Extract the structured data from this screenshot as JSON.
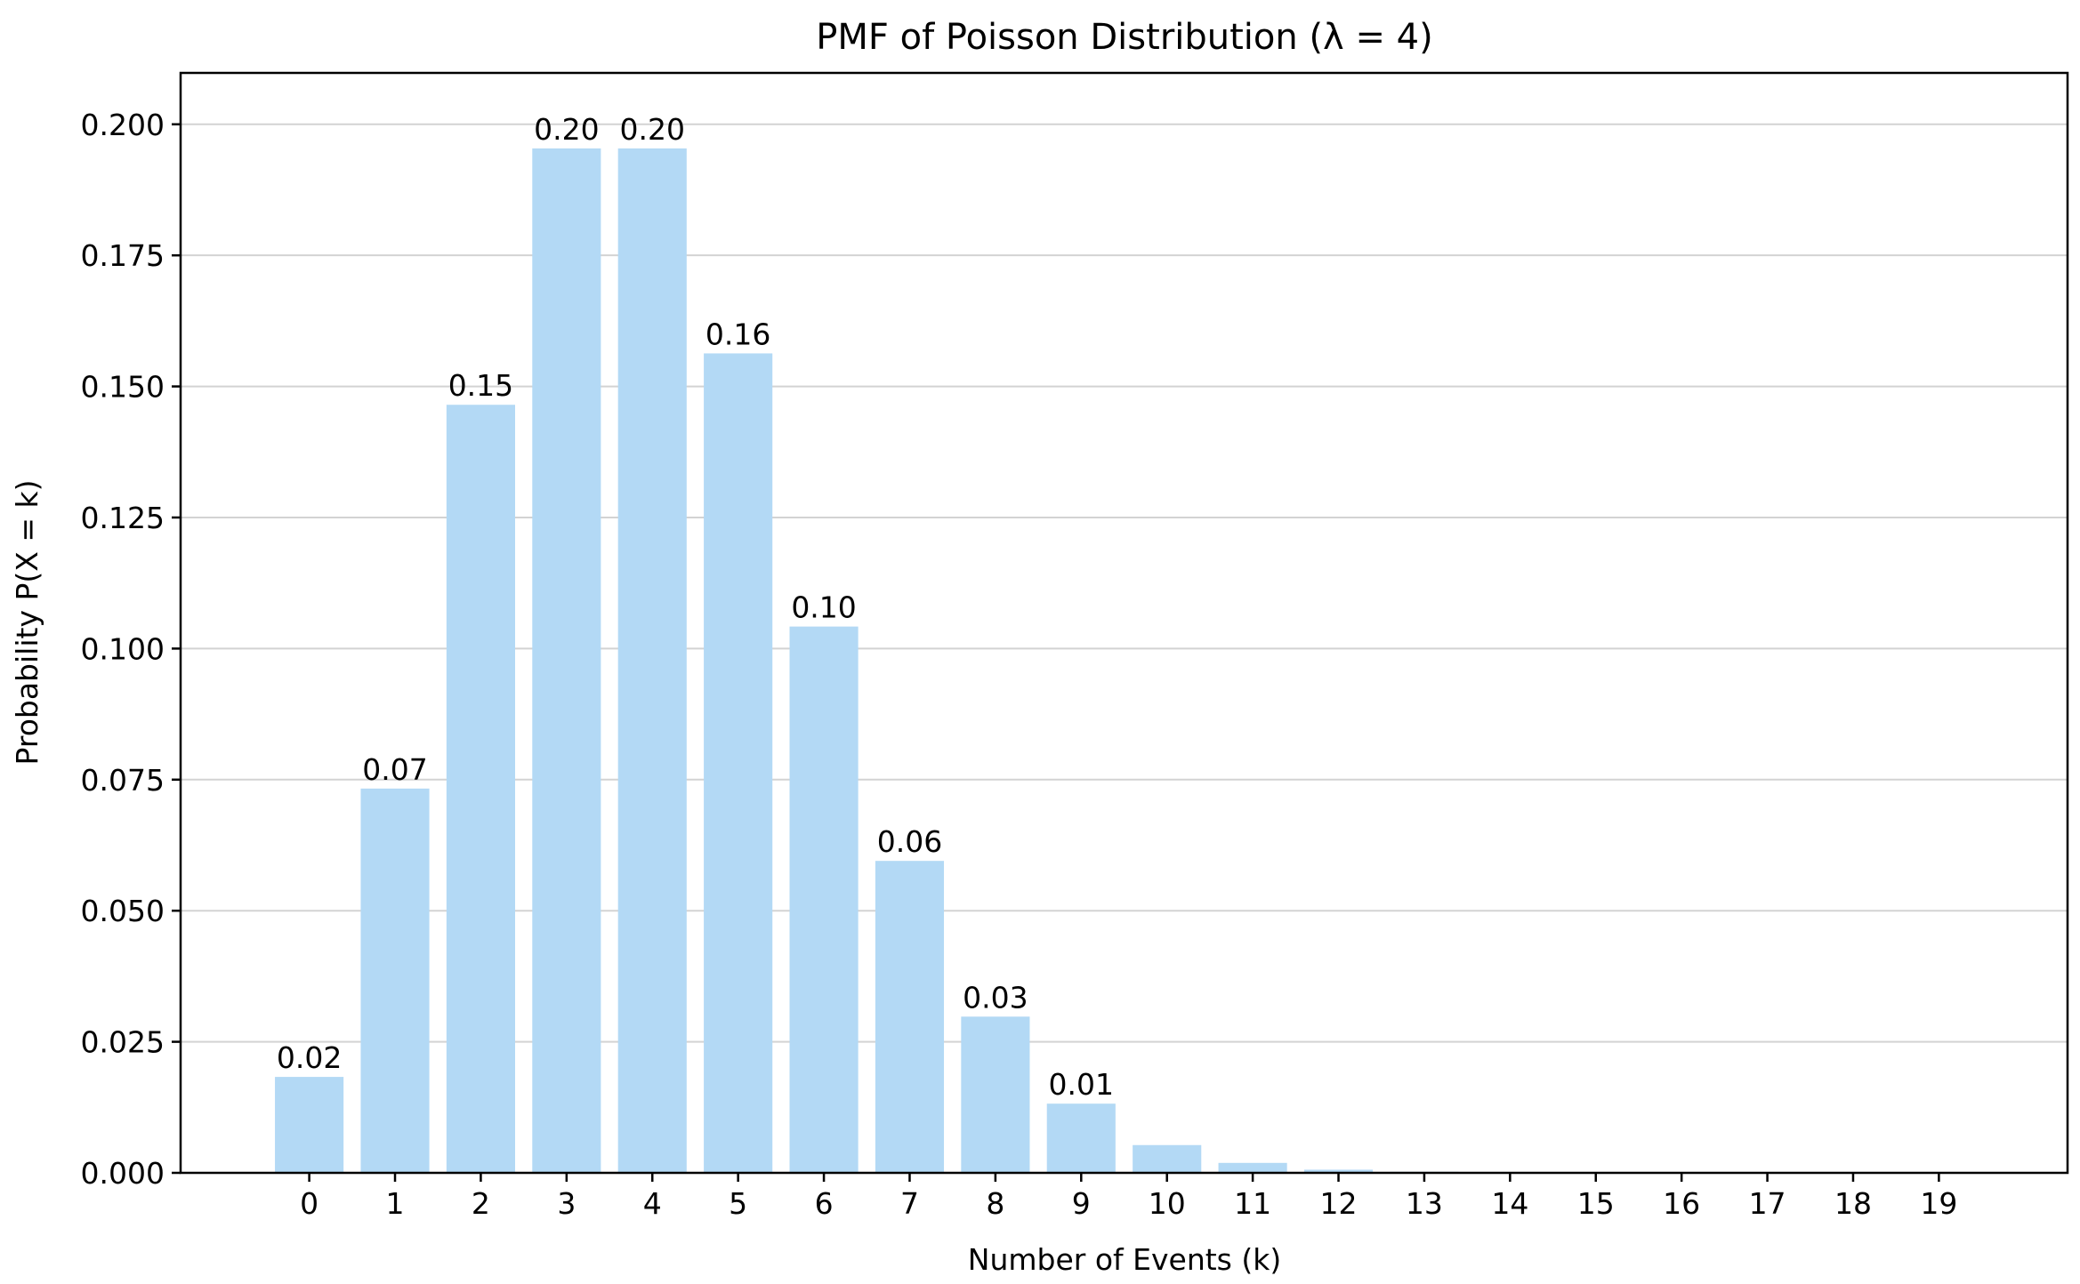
{
  "chart_data": {
    "type": "bar",
    "title": "PMF of Poisson Distribution (λ = 4)",
    "xlabel": "Number of Events (k)",
    "ylabel": "Probability P(X = k)",
    "categories": [
      "0",
      "1",
      "2",
      "3",
      "4",
      "5",
      "6",
      "7",
      "8",
      "9",
      "10",
      "11",
      "12",
      "13",
      "14",
      "15",
      "16",
      "17",
      "18",
      "19"
    ],
    "values": [
      0.0183,
      0.0733,
      0.1465,
      0.1954,
      0.1954,
      0.1563,
      0.1042,
      0.0595,
      0.0298,
      0.0132,
      0.0053,
      0.0019,
      0.0006,
      0.0002,
      0.0001,
      0.0,
      0.0,
      0.0,
      0.0,
      0.0
    ],
    "bar_labels": [
      "0.02",
      "0.07",
      "0.15",
      "0.20",
      "0.20",
      "0.16",
      "0.10",
      "0.06",
      "0.03",
      "0.01",
      "",
      "",
      "",
      "",
      "",
      "",
      "",
      "",
      "",
      ""
    ],
    "ylim": [
      0,
      0.2098
    ],
    "xlim": [
      -1.5,
      20.5
    ],
    "yticks": [
      0.0,
      0.025,
      0.05,
      0.075,
      0.1,
      0.125,
      0.15,
      0.175,
      0.2
    ],
    "ytick_labels": [
      "0.000",
      "0.025",
      "0.050",
      "0.075",
      "0.100",
      "0.125",
      "0.150",
      "0.175",
      "0.200"
    ],
    "grid": "y",
    "bar_color": "#b3d9f5"
  }
}
